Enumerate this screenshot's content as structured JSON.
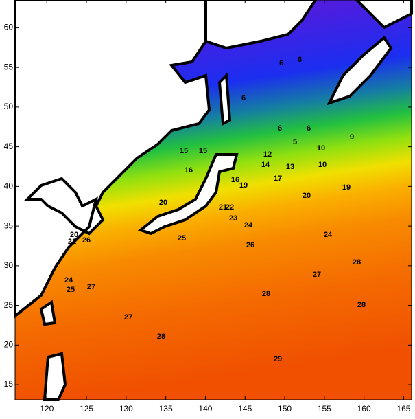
{
  "map": {
    "type": "contour",
    "xlim": [
      116,
      166
    ],
    "ylim": [
      13.1,
      63.5
    ],
    "xticks": [
      120,
      125,
      130,
      135,
      140,
      145,
      150,
      155,
      160,
      165
    ],
    "yticks": [
      15,
      20,
      25,
      30,
      35,
      40,
      45,
      50,
      55,
      60
    ],
    "contour_labels": [
      6,
      6,
      6,
      6,
      6,
      5,
      10,
      9,
      12,
      13,
      14,
      10,
      15,
      15,
      16,
      16,
      19,
      17,
      20,
      19,
      20,
      21,
      22,
      23,
      24,
      20,
      21,
      25,
      26,
      24,
      28,
      27,
      28,
      28,
      27,
      28,
      29,
      24,
      25,
      27,
      26
    ]
  }
}
